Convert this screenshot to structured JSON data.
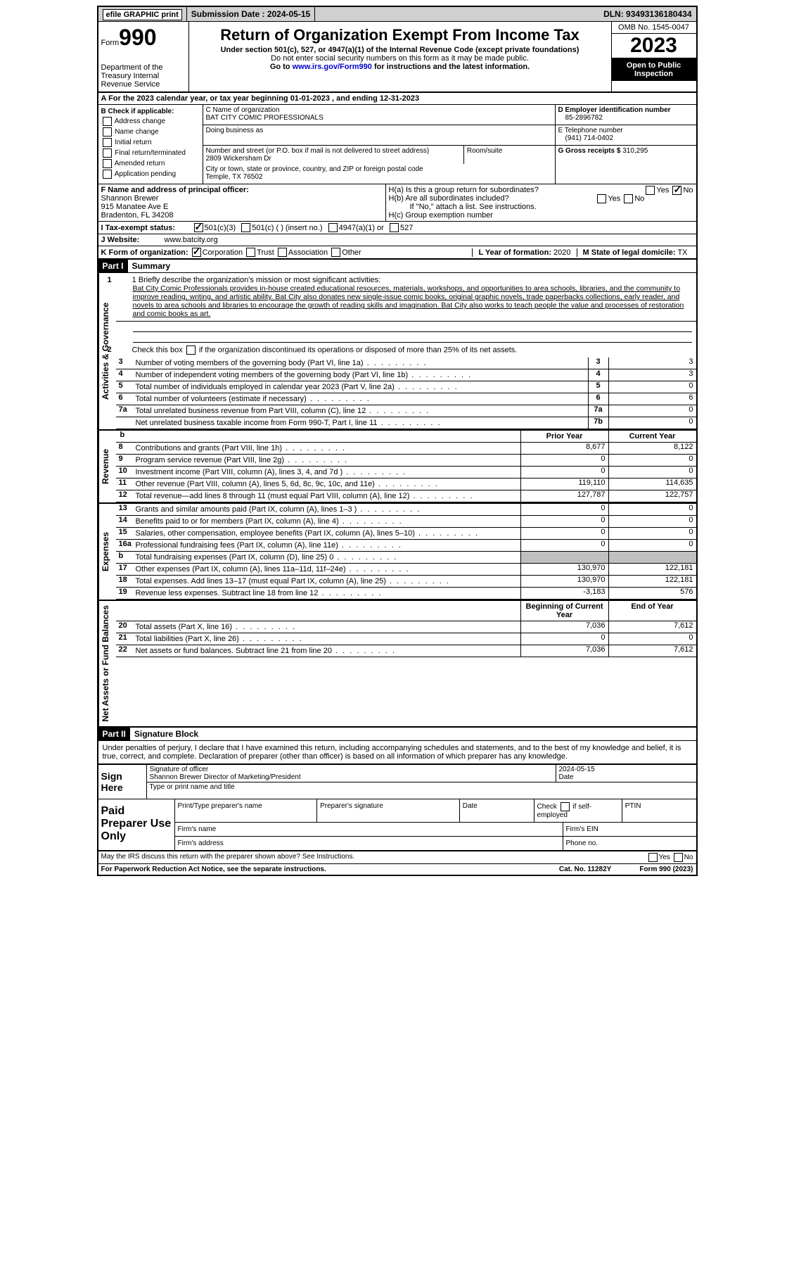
{
  "colors": {
    "text": "#000000",
    "bg": "#ffffff",
    "header_bg": "#d0d0d0",
    "part_bg": "#000000",
    "part_fg": "#ffffff",
    "link": "#0000cc",
    "shaded": "#c0c0c0"
  },
  "topbar": {
    "efile": "efile GRAPHIC print",
    "submission_label": "Submission Date : 2024-05-15",
    "dln": "DLN: 93493136180434"
  },
  "header": {
    "form_prefix": "Form",
    "form_number": "990",
    "dept": "Department of the Treasury Internal Revenue Service",
    "title": "Return of Organization Exempt From Income Tax",
    "subtitle": "Under section 501(c), 527, or 4947(a)(1) of the Internal Revenue Code (except private foundations)",
    "ssn_note": "Do not enter social security numbers on this form as it may be made public.",
    "goto": "Go to www.irs.gov/Form990 for instructions and the latest information.",
    "omb": "OMB No. 1545-0047",
    "year": "2023",
    "inspect": "Open to Public Inspection"
  },
  "calyear": "A For the 2023 calendar year, or tax year beginning 01-01-2023   , and ending 12-31-2023",
  "box_b": {
    "label": "B Check if applicable:",
    "opts": [
      "Address change",
      "Name change",
      "Initial return",
      "Final return/terminated",
      "Amended return",
      "Application pending"
    ]
  },
  "box_c": {
    "name_label": "C Name of organization",
    "name": "BAT CITY COMIC PROFESSIONALS",
    "dba_label": "Doing business as",
    "addr_label": "Number and street (or P.O. box if mail is not delivered to street address)",
    "room_label": "Room/suite",
    "addr": "2809 Wickersham Dr",
    "city_label": "City or town, state or province, country, and ZIP or foreign postal code",
    "city": "Temple, TX  76502"
  },
  "box_d": {
    "ein_label": "D Employer identification number",
    "ein": "85-2896782",
    "phone_label": "E Telephone number",
    "phone": "(941) 714-0402",
    "gross_label": "G Gross receipts $",
    "gross": "310,295"
  },
  "box_f": {
    "label": "F Name and address of principal officer:",
    "name": "Shannon Brewer",
    "addr1": "915 Manatee Ave E",
    "addr2": "Bradenton, FL  34208"
  },
  "box_h": {
    "ha": "H(a)  Is this a group return for subordinates?",
    "hb": "H(b)  Are all subordinates included?",
    "hb_note": "If \"No,\" attach a list. See instructions.",
    "hc": "H(c)  Group exemption number",
    "yes": "Yes",
    "no": "No",
    "ha_answer": "No"
  },
  "status": {
    "label": "I   Tax-exempt status:",
    "c3": "501(c)(3)",
    "c": "501(c) (  ) (insert no.)",
    "a1": "4947(a)(1) or",
    "s527": "527",
    "checked": "501(c)(3)"
  },
  "website": {
    "label": "J   Website:",
    "value": "www.batcity.org"
  },
  "korg": {
    "label": "K Form of organization:",
    "opts": [
      "Corporation",
      "Trust",
      "Association",
      "Other"
    ],
    "checked": "Corporation",
    "l_label": "L Year of formation:",
    "l_val": "2020",
    "m_label": "M State of legal domicile:",
    "m_val": "TX"
  },
  "part1": {
    "header": "Part I",
    "title": "Summary",
    "vtabs": [
      "Activities & Governance",
      "Revenue",
      "Expenses",
      "Net Assets or Fund Balances"
    ],
    "mission_label": "1   Briefly describe the organization's mission or most significant activities:",
    "mission": "Bat City Comic Professionals provides in-house created educational resources, materials, workshops, and opportunities to area schools, libraries, and the community to improve reading, writing, and artistic ability. Bat City also donates new single-issue comic books, original graphic novels, trade paperbacks collections, early reader, and novels to area schools and libraries to encourage the growth of reading skills and imagination. Bat City also works to teach people the value and processes of restoration and comic books as art.",
    "line2": "2    Check this box           if the organization discontinued its operations or disposed of more than 25% of its net assets.",
    "gov_lines": [
      {
        "n": "3",
        "d": "Number of voting members of the governing body (Part VI, line 1a)",
        "ref": "3",
        "v": "3"
      },
      {
        "n": "4",
        "d": "Number of independent voting members of the governing body (Part VI, line 1b)",
        "ref": "4",
        "v": "3"
      },
      {
        "n": "5",
        "d": "Total number of individuals employed in calendar year 2023 (Part V, line 2a)",
        "ref": "5",
        "v": "0"
      },
      {
        "n": "6",
        "d": "Total number of volunteers (estimate if necessary)",
        "ref": "6",
        "v": "6"
      },
      {
        "n": "7a",
        "d": "Total unrelated business revenue from Part VIII, column (C), line 12",
        "ref": "7a",
        "v": "0"
      },
      {
        "n": "",
        "d": "Net unrelated business taxable income from Form 990-T, Part I, line 11",
        "ref": "7b",
        "v": "0"
      }
    ],
    "col_headers": {
      "b": "b",
      "prior": "Prior Year",
      "current": "Current Year"
    },
    "rev_lines": [
      {
        "n": "8",
        "d": "Contributions and grants (Part VIII, line 1h)",
        "p": "8,677",
        "c": "8,122"
      },
      {
        "n": "9",
        "d": "Program service revenue (Part VIII, line 2g)",
        "p": "0",
        "c": "0"
      },
      {
        "n": "10",
        "d": "Investment income (Part VIII, column (A), lines 3, 4, and 7d )",
        "p": "0",
        "c": "0"
      },
      {
        "n": "11",
        "d": "Other revenue (Part VIII, column (A), lines 5, 6d, 8c, 9c, 10c, and 11e)",
        "p": "119,110",
        "c": "114,635"
      },
      {
        "n": "12",
        "d": "Total revenue—add lines 8 through 11 (must equal Part VIII, column (A), line 12)",
        "p": "127,787",
        "c": "122,757"
      }
    ],
    "exp_lines": [
      {
        "n": "13",
        "d": "Grants and similar amounts paid (Part IX, column (A), lines 1–3 )",
        "p": "0",
        "c": "0"
      },
      {
        "n": "14",
        "d": "Benefits paid to or for members (Part IX, column (A), line 4)",
        "p": "0",
        "c": "0"
      },
      {
        "n": "15",
        "d": "Salaries, other compensation, employee benefits (Part IX, column (A), lines 5–10)",
        "p": "0",
        "c": "0"
      },
      {
        "n": "16a",
        "d": "Professional fundraising fees (Part IX, column (A), line 11e)",
        "p": "0",
        "c": "0"
      },
      {
        "n": "b",
        "d": "Total fundraising expenses (Part IX, column (D), line 25) 0",
        "p": "shaded",
        "c": "shaded"
      },
      {
        "n": "17",
        "d": "Other expenses (Part IX, column (A), lines 11a–11d, 11f–24e)",
        "p": "130,970",
        "c": "122,181"
      },
      {
        "n": "18",
        "d": "Total expenses. Add lines 13–17 (must equal Part IX, column (A), line 25)",
        "p": "130,970",
        "c": "122,181"
      },
      {
        "n": "19",
        "d": "Revenue less expenses. Subtract line 18 from line 12",
        "p": "-3,183",
        "c": "576"
      }
    ],
    "net_headers": {
      "begin": "Beginning of Current Year",
      "end": "End of Year"
    },
    "net_lines": [
      {
        "n": "20",
        "d": "Total assets (Part X, line 16)",
        "p": "7,036",
        "c": "7,612"
      },
      {
        "n": "21",
        "d": "Total liabilities (Part X, line 26)",
        "p": "0",
        "c": "0"
      },
      {
        "n": "22",
        "d": "Net assets or fund balances. Subtract line 21 from line 20",
        "p": "7,036",
        "c": "7,612"
      }
    ]
  },
  "part2": {
    "header": "Part II",
    "title": "Signature Block",
    "perjury": "Under penalties of perjury, I declare that I have examined this return, including accompanying schedules and statements, and to the best of my knowledge and belief, it is true, correct, and complete. Declaration of preparer (other than officer) is based on all information of which preparer has any knowledge.",
    "sign_here": "Sign Here",
    "sig_officer": "Signature of officer",
    "sig_name": "Shannon Brewer  Director of Marketing/President",
    "sig_type": "Type or print name and title",
    "date_label": "Date",
    "date": "2024-05-15",
    "paid": "Paid Preparer Use Only",
    "print_name": "Print/Type preparer's name",
    "prep_sig": "Preparer's signature",
    "check_self": "Check          if self-employed",
    "ptin": "PTIN",
    "firm_name": "Firm's name",
    "firm_ein": "Firm's EIN",
    "firm_addr": "Firm's address",
    "phone": "Phone no."
  },
  "footer": {
    "discuss": "May the IRS discuss this return with the preparer shown above? See Instructions.",
    "yes": "Yes",
    "no": "No",
    "paperwork": "For Paperwork Reduction Act Notice, see the separate instructions.",
    "cat": "Cat. No. 11282Y",
    "form": "Form 990 (2023)"
  }
}
